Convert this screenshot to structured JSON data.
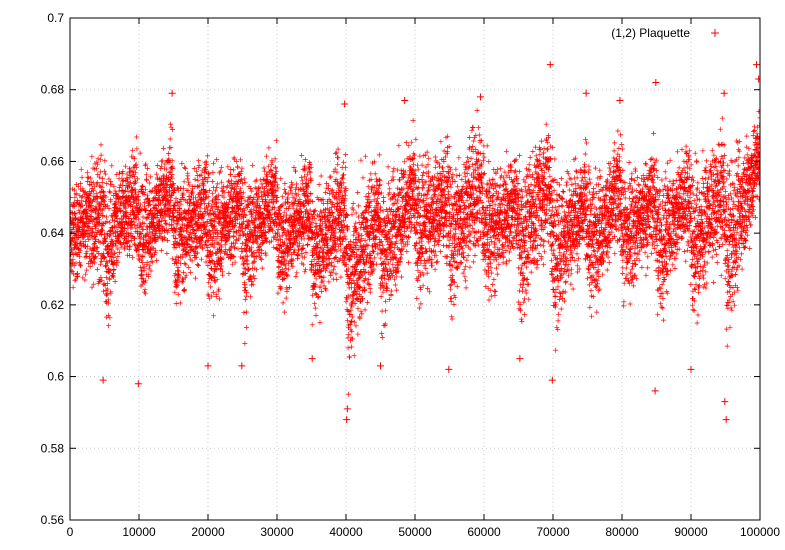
{
  "chart_data": {
    "type": "scatter",
    "title": "",
    "xlabel": "",
    "ylabel": "",
    "xlim": [
      0,
      100000
    ],
    "ylim": [
      0.56,
      0.7
    ],
    "grid": true,
    "legend": "top-right",
    "marker": "plus",
    "x_ticks": [
      "0",
      "10000",
      "20000",
      "30000",
      "40000",
      "50000",
      "60000",
      "70000",
      "80000",
      "90000",
      "100000"
    ],
    "y_ticks": [
      "0.56",
      "0.58",
      "0.6",
      "0.62",
      "0.64",
      "0.66",
      "0.68",
      "0.7"
    ],
    "series": [
      {
        "name": "(1,2) Plaquette",
        "color": "#ff0000",
        "envelope": {
          "x": [
            0,
            2000,
            4800,
            5200,
            7000,
            9500,
            10200,
            12500,
            14800,
            15200,
            17500,
            19800,
            20200,
            22500,
            24800,
            25200,
            27500,
            29800,
            30200,
            32500,
            34800,
            35200,
            37500,
            39800,
            40300,
            42500,
            44800,
            45200,
            47500,
            49800,
            50200,
            52500,
            54800,
            55200,
            57500,
            59500,
            60200,
            62500,
            64800,
            65200,
            67500,
            69500,
            70200,
            72500,
            74800,
            75200,
            77500,
            79800,
            80200,
            82500,
            84800,
            85200,
            87500,
            89800,
            90200,
            92500,
            94800,
            95200,
            97500,
            100000
          ],
          "low": [
            0.62,
            0.625,
            0.62,
            0.603,
            0.625,
            0.628,
            0.612,
            0.628,
            0.632,
            0.61,
            0.625,
            0.628,
            0.605,
            0.625,
            0.628,
            0.605,
            0.627,
            0.632,
            0.61,
            0.625,
            0.628,
            0.61,
            0.62,
            0.622,
            0.59,
            0.61,
            0.628,
            0.605,
            0.622,
            0.632,
            0.61,
            0.625,
            0.628,
            0.607,
            0.625,
            0.63,
            0.61,
            0.625,
            0.628,
            0.607,
            0.625,
            0.63,
            0.6,
            0.622,
            0.628,
            0.607,
            0.625,
            0.632,
            0.61,
            0.625,
            0.628,
            0.605,
            0.625,
            0.632,
            0.605,
            0.625,
            0.628,
            0.598,
            0.625,
            0.645
          ],
          "high": [
            0.655,
            0.662,
            0.67,
            0.662,
            0.66,
            0.67,
            0.665,
            0.662,
            0.675,
            0.665,
            0.66,
            0.67,
            0.665,
            0.66,
            0.67,
            0.665,
            0.66,
            0.67,
            0.66,
            0.66,
            0.667,
            0.655,
            0.66,
            0.672,
            0.66,
            0.66,
            0.668,
            0.66,
            0.665,
            0.673,
            0.668,
            0.665,
            0.672,
            0.668,
            0.67,
            0.678,
            0.672,
            0.662,
            0.668,
            0.665,
            0.67,
            0.678,
            0.665,
            0.662,
            0.67,
            0.665,
            0.662,
            0.672,
            0.665,
            0.662,
            0.672,
            0.665,
            0.662,
            0.672,
            0.665,
            0.665,
            0.675,
            0.668,
            0.67,
            0.68
          ]
        },
        "outliers": [
          {
            "x": 4800,
            "y": 0.599
          },
          {
            "x": 9900,
            "y": 0.598
          },
          {
            "x": 14800,
            "y": 0.679
          },
          {
            "x": 20000,
            "y": 0.603
          },
          {
            "x": 24900,
            "y": 0.603
          },
          {
            "x": 35100,
            "y": 0.605
          },
          {
            "x": 39800,
            "y": 0.676
          },
          {
            "x": 40100,
            "y": 0.588
          },
          {
            "x": 40200,
            "y": 0.591
          },
          {
            "x": 45000,
            "y": 0.603
          },
          {
            "x": 48500,
            "y": 0.677
          },
          {
            "x": 54900,
            "y": 0.602
          },
          {
            "x": 59500,
            "y": 0.678
          },
          {
            "x": 65200,
            "y": 0.605
          },
          {
            "x": 69600,
            "y": 0.687
          },
          {
            "x": 69900,
            "y": 0.599
          },
          {
            "x": 74800,
            "y": 0.679
          },
          {
            "x": 79700,
            "y": 0.677
          },
          {
            "x": 84900,
            "y": 0.682
          },
          {
            "x": 84800,
            "y": 0.596
          },
          {
            "x": 90000,
            "y": 0.602
          },
          {
            "x": 94800,
            "y": 0.679
          },
          {
            "x": 95100,
            "y": 0.588
          },
          {
            "x": 94900,
            "y": 0.593
          },
          {
            "x": 99500,
            "y": 0.687
          },
          {
            "x": 99800,
            "y": 0.683
          }
        ]
      }
    ]
  }
}
